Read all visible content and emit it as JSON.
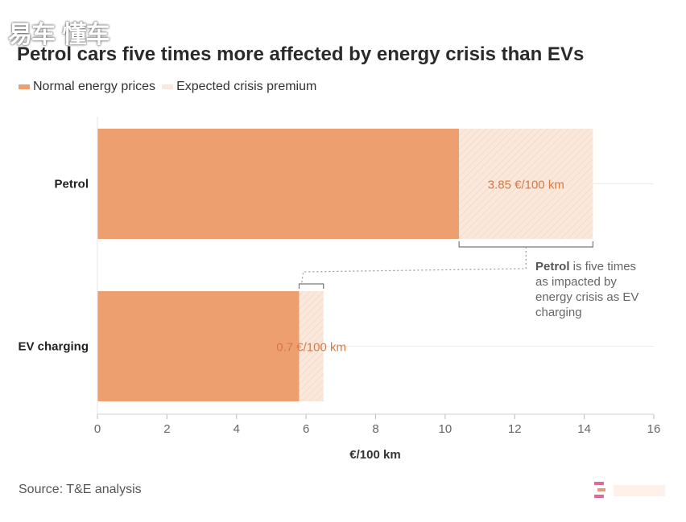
{
  "watermark": "易车 懂车",
  "title": "Petrol cars five times more affected by energy crisis than EVs",
  "legend": {
    "normal": "Normal energy prices",
    "premium": "Expected crisis premium"
  },
  "annotation": {
    "bold": "Petrol",
    "lines": [
      " is five times",
      "as impacted by",
      "energy crisis as EV",
      "charging"
    ]
  },
  "source": "Source: T&E analysis",
  "colors": {
    "normal": "#ee9f70",
    "premium": "#fbe8dc",
    "label": "#d9783f",
    "axis": "#cccccc"
  },
  "chart_data": {
    "type": "bar",
    "orientation": "horizontal",
    "stacked": true,
    "categories": [
      "Petrol",
      "EV charging"
    ],
    "series": [
      {
        "name": "Normal energy prices",
        "values": [
          10.4,
          5.8
        ]
      },
      {
        "name": "Expected crisis premium",
        "values": [
          3.85,
          0.7
        ]
      }
    ],
    "data_labels": [
      "3.85 €/100 km",
      "0.7 €/100 km"
    ],
    "xlabel": "€/100 km",
    "xlim": [
      0,
      16
    ],
    "xticks": [
      "0",
      "2",
      "4",
      "6",
      "8",
      "10",
      "12",
      "14",
      "16"
    ],
    "grid": false,
    "legend_position": "top-left"
  }
}
